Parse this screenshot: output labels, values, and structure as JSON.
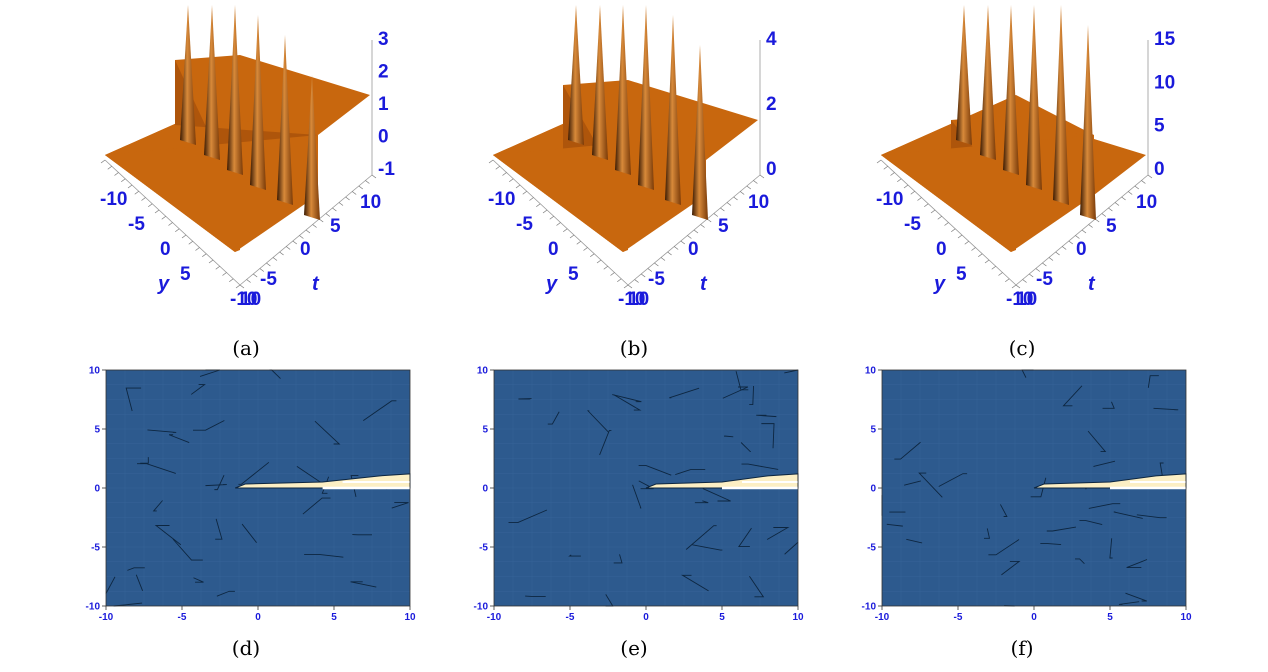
{
  "figure": {
    "captions": [
      "(a)",
      "(b)",
      "(c)",
      "(d)",
      "(e)",
      "(f)"
    ],
    "surface_color": "#c8670e",
    "contour_color": "#2d5a8e",
    "axis_label_color": "#1a1adb"
  },
  "chart_data": [
    {
      "type": "surface3d",
      "id": "a",
      "xlabel": "y",
      "ylabel": "t",
      "x_ticks": [
        "-10",
        "-5",
        "0",
        "5",
        "10"
      ],
      "t_ticks": [
        "-10",
        "-5",
        "0",
        "5",
        "10"
      ],
      "z_ticks": [
        "3",
        "2",
        "1",
        "0",
        "-1"
      ],
      "spike_count": 6,
      "zlim": [
        -1,
        3
      ]
    },
    {
      "type": "surface3d",
      "id": "b",
      "xlabel": "y",
      "ylabel": "t",
      "x_ticks": [
        "-10",
        "-5",
        "0",
        "5",
        "10"
      ],
      "t_ticks": [
        "-10",
        "-5",
        "0",
        "5",
        "10"
      ],
      "z_ticks": [
        "4",
        "2",
        "0"
      ],
      "spike_count": 6,
      "zlim": [
        -1,
        5
      ]
    },
    {
      "type": "surface3d",
      "id": "c",
      "xlabel": "y",
      "ylabel": "t",
      "x_ticks": [
        "-10",
        "-5",
        "0",
        "5",
        "10"
      ],
      "t_ticks": [
        "-10",
        "-5",
        "0",
        "5",
        "10"
      ],
      "z_ticks": [
        "15",
        "10",
        "5",
        "0"
      ],
      "spike_count": 6,
      "zlim": [
        0,
        17
      ]
    },
    {
      "type": "contour",
      "id": "d",
      "x_ticks": [
        "-10",
        "-5",
        "0",
        "5",
        "10"
      ],
      "y_ticks": [
        "10",
        "5",
        "0",
        "-5",
        "-10"
      ],
      "xlim": [
        -10,
        10
      ],
      "ylim": [
        -10,
        10
      ],
      "feature_start_x": -1.5
    },
    {
      "type": "contour",
      "id": "e",
      "x_ticks": [
        "-10",
        "-5",
        "0",
        "5",
        "10"
      ],
      "y_ticks": [
        "10",
        "5",
        "0",
        "-5",
        "-10"
      ],
      "xlim": [
        -10,
        10
      ],
      "ylim": [
        -10,
        10
      ],
      "feature_start_x": 0
    },
    {
      "type": "contour",
      "id": "f",
      "x_ticks": [
        "-10",
        "-5",
        "0",
        "5",
        "10"
      ],
      "y_ticks": [
        "10",
        "5",
        "0",
        "-5",
        "-10"
      ],
      "xlim": [
        -10,
        10
      ],
      "ylim": [
        -10,
        10
      ],
      "feature_start_x": 0
    }
  ]
}
